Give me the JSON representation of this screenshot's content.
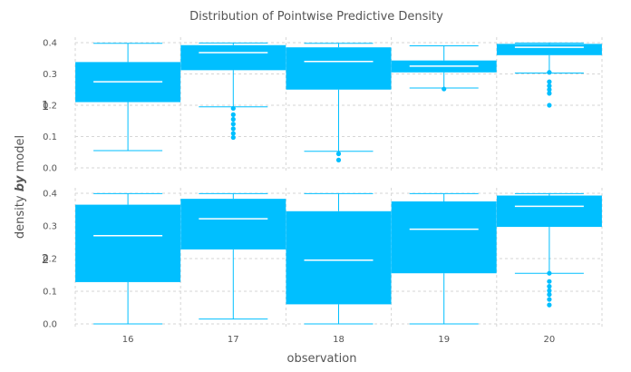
{
  "chart_data": {
    "type": "box",
    "title": "Distribution of Pointwise Predictive Density",
    "xlabel": "observation",
    "ylabel_prefix": "density ",
    "ylabel_bold": "by",
    "ylabel_suffix": " model",
    "categories": [
      "16",
      "17",
      "18",
      "19",
      "20"
    ],
    "ylim": [
      0,
      0.4
    ],
    "yticks": [
      "0.0",
      "0.1",
      "0.2",
      "0.3",
      "0.4"
    ],
    "grid": true,
    "colors": {
      "box": "#00bfff",
      "median": "#ffffff",
      "whisker": "#00bfff",
      "outlier": "#00bfff"
    },
    "facets": [
      {
        "label": "1",
        "boxes": [
          {
            "observation": "16",
            "min": 0.055,
            "q1": 0.21,
            "median": 0.275,
            "q3": 0.338,
            "max": 0.398,
            "outliers": []
          },
          {
            "observation": "17",
            "min": 0.195,
            "q1": 0.312,
            "median": 0.368,
            "q3": 0.392,
            "max": 0.399,
            "outliers": [
              0.19,
              0.17,
              0.155,
              0.14,
              0.125,
              0.11,
              0.097
            ]
          },
          {
            "observation": "18",
            "min": 0.053,
            "q1": 0.25,
            "median": 0.34,
            "q3": 0.385,
            "max": 0.398,
            "outliers": [
              0.045,
              0.025
            ]
          },
          {
            "observation": "19",
            "min": 0.255,
            "q1": 0.305,
            "median": 0.325,
            "q3": 0.343,
            "max": 0.39,
            "outliers": [
              0.252
            ]
          },
          {
            "observation": "20",
            "min": 0.303,
            "q1": 0.36,
            "median": 0.385,
            "q3": 0.396,
            "max": 0.399,
            "outliers": [
              0.305,
              0.275,
              0.262,
              0.25,
              0.238,
              0.2
            ]
          }
        ]
      },
      {
        "label": "2",
        "boxes": [
          {
            "observation": "16",
            "min": 0.0,
            "q1": 0.128,
            "median": 0.27,
            "q3": 0.365,
            "max": 0.399,
            "outliers": []
          },
          {
            "observation": "17",
            "min": 0.015,
            "q1": 0.228,
            "median": 0.322,
            "q3": 0.383,
            "max": 0.399,
            "outliers": []
          },
          {
            "observation": "18",
            "min": 0.0,
            "q1": 0.06,
            "median": 0.195,
            "q3": 0.345,
            "max": 0.399,
            "outliers": []
          },
          {
            "observation": "19",
            "min": 0.0,
            "q1": 0.155,
            "median": 0.29,
            "q3": 0.375,
            "max": 0.399,
            "outliers": []
          },
          {
            "observation": "20",
            "min": 0.155,
            "q1": 0.297,
            "median": 0.36,
            "q3": 0.393,
            "max": 0.399,
            "outliers": [
              0.155,
              0.13,
              0.115,
              0.102,
              0.09,
              0.075,
              0.058
            ]
          }
        ]
      }
    ]
  }
}
